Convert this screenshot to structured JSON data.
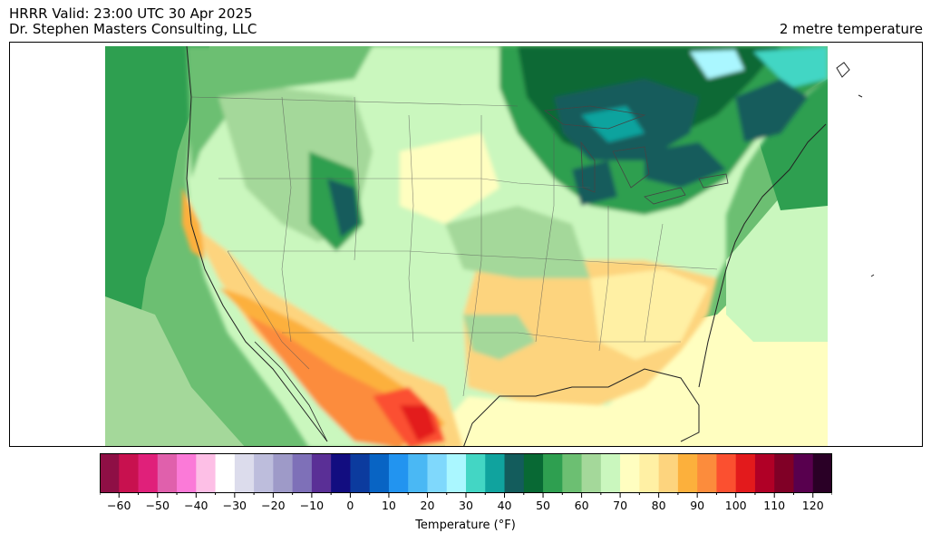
{
  "header": {
    "title_line1": "HRRR Valid: 23:00 UTC 30 Apr 2025",
    "title_line2": "Dr. Stephen Masters Consulting, LLC",
    "field_name": "2 metre temperature"
  },
  "colorbar": {
    "label": "Temperature (°F)",
    "min": -65,
    "max": 125,
    "step": 5,
    "tick_labels": [
      "−60",
      "−50",
      "−40",
      "−30",
      "−20",
      "−10",
      "0",
      "10",
      "20",
      "30",
      "40",
      "50",
      "60",
      "70",
      "80",
      "90",
      "100",
      "110",
      "120"
    ],
    "tick_values": [
      -60,
      -50,
      -40,
      -30,
      -20,
      -10,
      0,
      10,
      20,
      30,
      40,
      50,
      60,
      70,
      80,
      90,
      100,
      110,
      120
    ],
    "colors": [
      "#8e0f45",
      "#c8114f",
      "#e0207a",
      "#e060ac",
      "#fb7ad8",
      "#fdbfe6",
      "#ffffff",
      "#dcdcec",
      "#bdbddc",
      "#9e9ac8",
      "#7e70b8",
      "#5a2f96",
      "#120d80",
      "#0c3b9e",
      "#0864c4",
      "#2294f0",
      "#4ab8f4",
      "#7fd8fc",
      "#aaf7ff",
      "#43d6c4",
      "#10a39e",
      "#135c5c",
      "#086934",
      "#2e9f50",
      "#6cbf72",
      "#a4d89a",
      "#caf7be",
      "#fffec0",
      "#fff0a4",
      "#fdd47e",
      "#fcb03c",
      "#fc8c3c",
      "#fb5030",
      "#e31a1c",
      "#b00026",
      "#800026",
      "#58004e",
      "#2a0026"
    ]
  },
  "map": {
    "colors": {
      "ocean_pacific": "#6cbf72",
      "ocean_pacific_far": "#2e9f50",
      "gulf": "#fff0a4",
      "atlantic": "#caf7be",
      "north_cold": "#135c5c",
      "plains": "#caf7be",
      "south": "#fdd47e",
      "hot": "#fb5030",
      "hottest": "#e31a1c",
      "rockies": "#086934",
      "lakes": "#10a39e",
      "ice": "#aaf7ff"
    }
  }
}
